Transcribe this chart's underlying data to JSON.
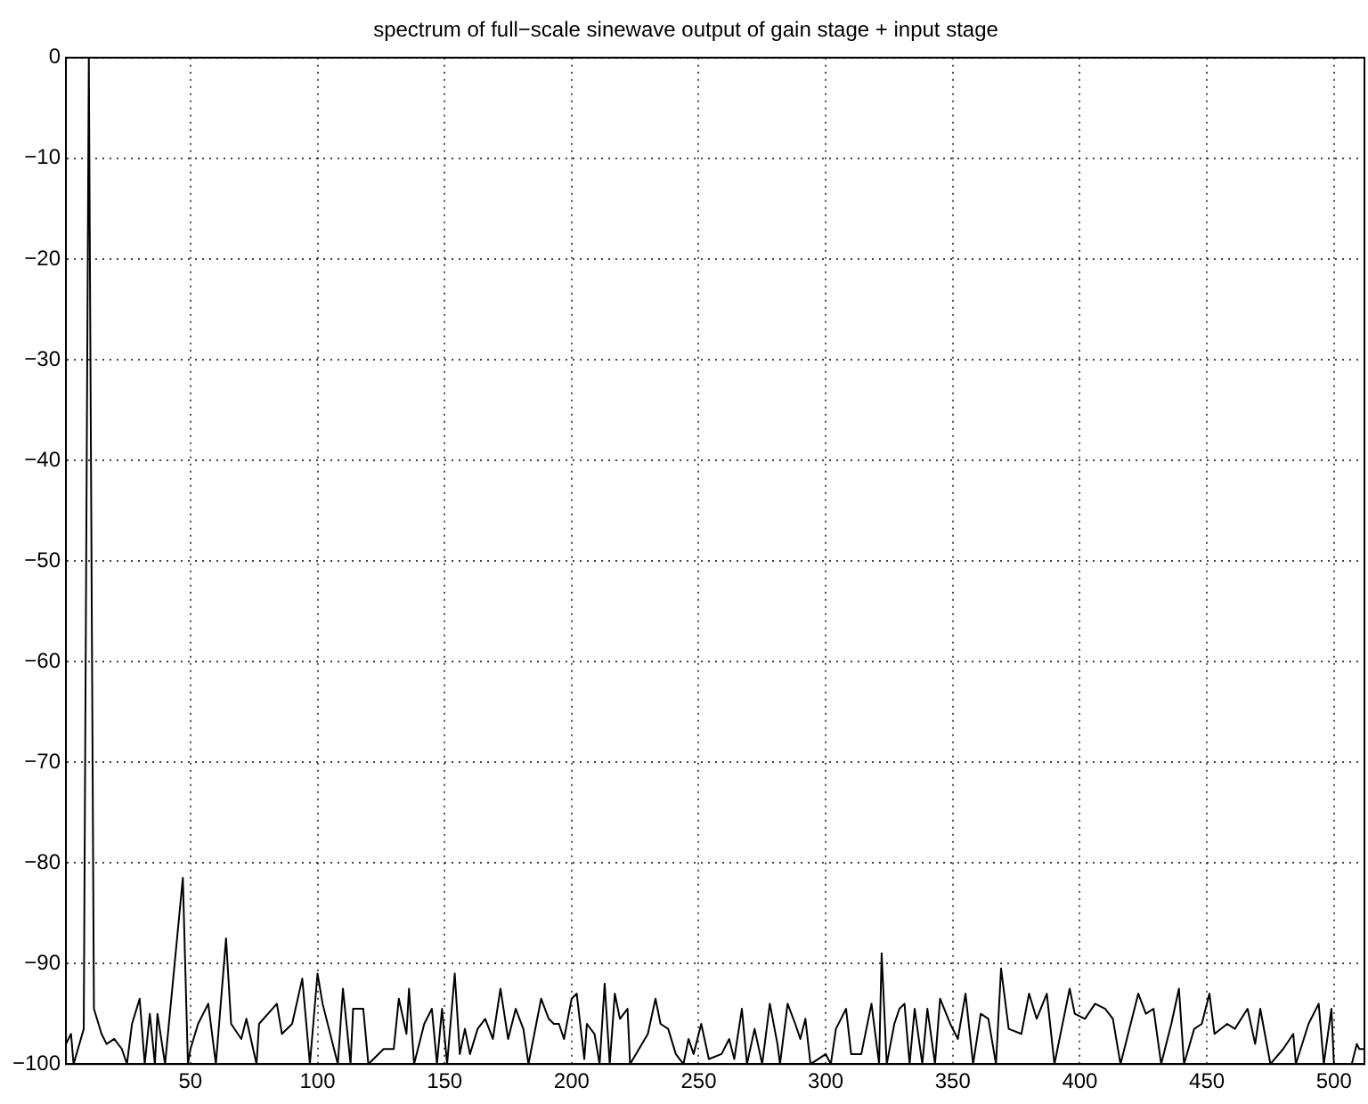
{
  "chart_data": {
    "type": "line",
    "title": "spectrum of full−scale sinewave output of gain stage + input stage",
    "x": [
      1,
      3,
      4,
      8,
      10,
      12,
      15,
      17,
      20,
      23,
      25,
      27,
      30,
      32,
      34,
      36,
      37,
      40,
      47,
      49,
      50,
      53,
      57,
      60,
      64,
      66,
      70,
      72,
      76,
      77,
      84,
      86,
      90,
      94,
      97,
      100,
      102,
      108,
      110,
      113,
      114,
      118,
      120,
      126,
      130,
      132,
      135,
      136,
      138,
      142,
      145,
      147,
      149,
      151,
      154,
      156,
      158,
      160,
      163,
      166,
      169,
      172,
      175,
      178,
      181,
      183,
      188,
      191,
      193,
      195,
      197,
      200,
      202,
      205,
      206,
      209,
      211,
      213,
      215,
      217,
      219,
      222,
      223,
      230,
      233,
      235,
      238,
      241,
      244,
      246,
      248,
      251,
      254,
      259,
      262,
      264,
      267,
      269,
      272,
      275,
      278,
      281,
      282,
      285,
      288,
      290,
      292,
      294,
      297,
      300,
      302,
      304,
      306,
      308,
      310,
      314,
      318,
      321,
      322,
      324,
      327,
      329,
      331,
      333,
      335,
      338,
      340,
      343,
      345,
      349,
      352,
      355,
      358,
      361,
      364,
      367,
      369,
      372,
      377,
      380,
      383,
      387,
      390,
      396,
      398,
      402,
      406,
      410,
      413,
      416,
      420,
      423,
      426,
      429,
      432,
      436,
      439,
      441,
      445,
      448,
      451,
      453,
      458,
      461,
      466,
      469,
      471,
      475,
      480,
      484,
      485,
      490,
      494,
      496,
      499,
      500,
      507,
      509,
      510,
      512
    ],
    "values": [
      -98,
      -97,
      -100,
      -96.5,
      0,
      -94.5,
      -97,
      -98,
      -97.5,
      -98.5,
      -100,
      -96,
      -93.5,
      -100,
      -95,
      -100,
      -95,
      -100,
      -81.5,
      -100,
      -98.5,
      -96,
      -94,
      -100,
      -87.5,
      -96,
      -97.5,
      -95.5,
      -100,
      -96,
      -94,
      -97,
      -96,
      -91.5,
      -100,
      -91,
      -94,
      -100,
      -92.5,
      -100,
      -94.5,
      -94.5,
      -100,
      -98.5,
      -98.5,
      -93.5,
      -97,
      -92.5,
      -100,
      -96,
      -94.5,
      -100,
      -94.5,
      -100,
      -91,
      -99,
      -96.5,
      -99,
      -96.5,
      -95.5,
      -97.5,
      -92.5,
      -97.5,
      -94.5,
      -96.5,
      -100,
      -93.5,
      -95.5,
      -96,
      -96,
      -97.5,
      -93.5,
      -93,
      -99.5,
      -96,
      -97,
      -100,
      -92,
      -100,
      -93,
      -95.5,
      -94.5,
      -100,
      -97,
      -93.5,
      -96,
      -96.5,
      -99,
      -100,
      -97.5,
      -99,
      -96,
      -99.5,
      -99,
      -97.5,
      -99.5,
      -94.5,
      -100,
      -96.5,
      -100,
      -94,
      -98,
      -100,
      -94,
      -96,
      -97.5,
      -95.5,
      -100,
      -99.5,
      -99,
      -100,
      -96.5,
      -95.5,
      -94.5,
      -99,
      -99,
      -94,
      -100,
      -89,
      -100,
      -96,
      -94.5,
      -94,
      -100,
      -94.5,
      -100,
      -94.5,
      -100,
      -93.5,
      -96,
      -97.5,
      -93,
      -100,
      -95,
      -95.5,
      -100,
      -90.5,
      -96.5,
      -97,
      -93,
      -95.5,
      -93,
      -100,
      -92.5,
      -95,
      -95.5,
      -94,
      -94.5,
      -95.5,
      -100,
      -96,
      -93,
      -95,
      -94.5,
      -100,
      -96,
      -92.5,
      -100,
      -96.5,
      -96,
      -93,
      -97,
      -96,
      -96.5,
      -94.5,
      -98,
      -94.5,
      -100,
      -98.5,
      -97,
      -100,
      -96,
      -94,
      -100,
      -94.5,
      -100,
      -100,
      -98,
      -98.5,
      -98.5
    ],
    "color": "#000000",
    "xlim": [
      1,
      512
    ],
    "xticks": [
      50,
      100,
      150,
      200,
      250,
      300,
      350,
      400,
      450,
      500
    ],
    "ylim": [
      -100,
      0
    ],
    "yticks": [
      -100,
      -90,
      -80,
      -70,
      -60,
      -50,
      -40,
      -30,
      -20,
      -10,
      0
    ],
    "grid": true,
    "legend": false,
    "marker": "none",
    "line_style": "solid"
  }
}
